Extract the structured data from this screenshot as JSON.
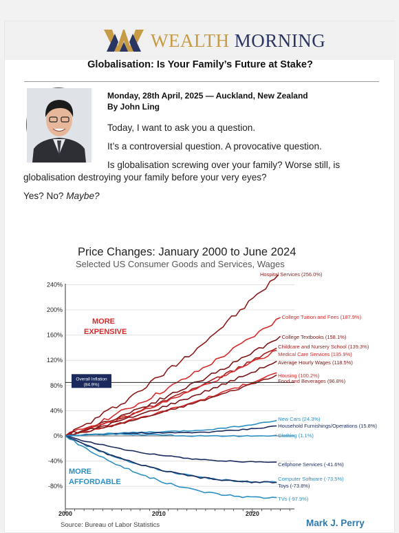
{
  "header": {
    "brand_word1": "WEALTH",
    "brand_word2": "MORNING",
    "logo_icon": "wm-monogram-logo-icon"
  },
  "article": {
    "title": "Globalisation: Is Your Family’s Future at Stake?",
    "dateline": "Monday, 28th April, 2025 — Auckland, New Zealand",
    "author": "By John Ling",
    "paragraphs": [
      "Today, I want to ask you a question.",
      "It’s a controversial question. A provocative question.",
      "Is globalisation screwing over your family? Worse still, is",
      "globalisation destroying your family before your very eyes?",
      "Yes? No? ",
      "Maybe?"
    ]
  },
  "chart_data": {
    "type": "line",
    "title": "Price Changes:  January 2000 to June 2024",
    "subtitle": "Selected US Consumer Goods and Services, Wages",
    "y_ticks": [
      "240%",
      "200%",
      "160%",
      "120%",
      "80%",
      "40%",
      "0%",
      "-40%",
      "-80%"
    ],
    "x_ticks": [
      "2000",
      "2010",
      "2020"
    ],
    "xlim": [
      2000,
      2024.5
    ],
    "ylim": [
      -100,
      260
    ],
    "reference_line": {
      "label": "Overall Inflation",
      "value_label": "(84.9%)",
      "value": 84.9
    },
    "annotations": {
      "more_expensive_1": "MORE",
      "more_expensive_2": "EXPENSIVE",
      "more_affordable_1": "MORE",
      "more_affordable_2": "AFFORDABLE"
    },
    "source": "Source: Bureau of Labor Statistics",
    "credit": "Mark J. Perry",
    "series": [
      {
        "name": "Hospital Services (256.0%)",
        "final": 256.0,
        "color": "#8b1a1a"
      },
      {
        "name": "College Tuition and Fees (187.9%)",
        "final": 187.9,
        "color": "#d42a2a"
      },
      {
        "name": "College Textbooks (158.1%)",
        "final": 158.1,
        "color": "#7a1414"
      },
      {
        "name": "Childcare and Nursery School (139.3%)",
        "final": 139.3,
        "color": "#a51e1e"
      },
      {
        "name": "Medical Care Services (135.9%)",
        "final": 135.9,
        "color": "#d42a2a"
      },
      {
        "name": "Average Hourly Wages (118.5%)",
        "final": 118.5,
        "color": "#7a1414"
      },
      {
        "name": "Housing (100.2%)",
        "final": 100.2,
        "color": "#d42a2a"
      },
      {
        "name": "Food and Beverages (96.8%)",
        "final": 96.8,
        "color": "#8b1a1a"
      },
      {
        "name": "New Cars (24.3%)",
        "final": 24.3,
        "color": "#2b8fc3"
      },
      {
        "name": "Household Furnishings/Operations (15.8%)",
        "final": 15.8,
        "color": "#1b2a5c"
      },
      {
        "name": "Clothing (1.1%)",
        "final": 1.1,
        "color": "#2b8fc3"
      },
      {
        "name": "Cellphone Services (-41.6%)",
        "final": -41.6,
        "color": "#1b2a5c"
      },
      {
        "name": "Computer Software (-73.5%)",
        "final": -73.5,
        "color": "#2b8fc3"
      },
      {
        "name": "Toys (-73.8%)",
        "final": -73.8,
        "color": "#1b2a5c"
      },
      {
        "name": "TVs (-97.9%)",
        "final": -97.9,
        "color": "#2b8fc3"
      }
    ]
  }
}
